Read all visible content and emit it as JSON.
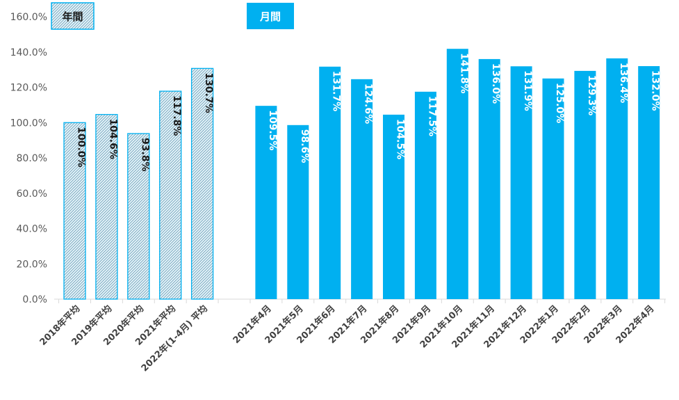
{
  "chart_data": {
    "type": "bar",
    "ylim": [
      0,
      160
    ],
    "y_ticks": [
      "0.0%",
      "20.0%",
      "40.0%",
      "60.0%",
      "80.0%",
      "100.0%",
      "120.0%",
      "140.0%",
      "160.0%"
    ],
    "grid": false,
    "legend": [
      {
        "label": "年間",
        "style": "hatched"
      },
      {
        "label": "月間",
        "style": "solid"
      }
    ],
    "series": [
      {
        "style": "hatched",
        "categories": [
          "2018年平均",
          "2019年平均",
          "2020年平均",
          "2021年平均",
          "2022年(1-4月) 平均"
        ],
        "values": [
          100.0,
          104.6,
          93.8,
          117.8,
          130.7
        ],
        "labels": [
          "100.0%",
          "104.6%",
          "93.8%",
          "117.8%",
          "130.7%"
        ]
      },
      {
        "style": "solid",
        "categories": [
          "2021年4月",
          "2021年5月",
          "2021年6月",
          "2021年7月",
          "2021年8月",
          "2021年9月",
          "2021年10月",
          "2021年11月",
          "2021年12月",
          "2022年1月",
          "2022年2月",
          "2022年3月",
          "2022年4月"
        ],
        "values": [
          109.5,
          98.6,
          131.7,
          124.6,
          104.5,
          117.5,
          141.8,
          136.0,
          131.9,
          125.0,
          129.3,
          136.4,
          132.0
        ],
        "labels": [
          "109.5%",
          "98.6%",
          "131.7%",
          "124.6%",
          "104.5%",
          "117.5%",
          "141.8%",
          "136.0%",
          "131.9%",
          "125.0%",
          "129.3%",
          "136.4%",
          "132.0%"
        ]
      }
    ]
  },
  "colors": {
    "accent": "#00b0f0",
    "hatch_fill": "#e6f4fa",
    "hatch_line": "#6a9db5",
    "axis": "#d9d9d9",
    "dark_label": "#1a1a1a",
    "light_label": "#ffffff"
  }
}
